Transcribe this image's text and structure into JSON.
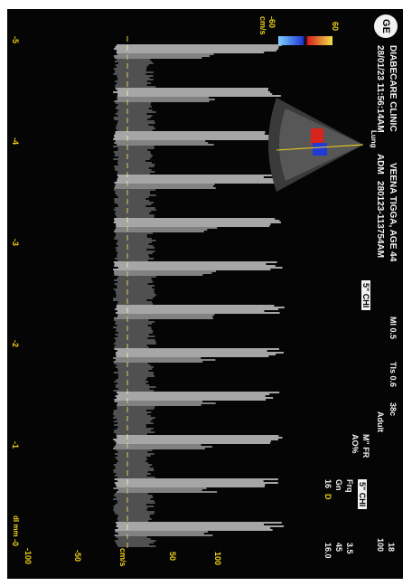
{
  "header": {
    "logo": "GE",
    "clinic": "DIABECARE CLINIC",
    "datetime": "28/01/23 11:56:14AM",
    "patient": "VEENA TIGGA, AGE 44",
    "adm_label": "ADM",
    "adm_id": "280123-113754AM",
    "mi": "MI 0.5",
    "tis": "TIs 0.6",
    "temp": "38c",
    "mode": "Adult"
  },
  "params": {
    "group1": {
      "labels": [
        "M\" FR",
        "AO%"
      ],
      "values": [
        "18",
        "100"
      ]
    },
    "group2": {
      "title": "5\" CHI",
      "labels": [
        "Frq",
        "Gn",
        "D"
      ],
      "values": [
        "3.5",
        "45",
        "16.0"
      ],
      "prefix": "16"
    },
    "group3": {
      "title": "CF",
      "labels": [
        "Frq",
        "Gn",
        "PRF",
        "WF"
      ],
      "values": [
        "1.7",
        "15.0",
        "2.6",
        "322"
      ],
      "prefix": "15"
    },
    "group4": {
      "title": "PW",
      "labels": [
        "Frq",
        "Gn",
        "PRF",
        "WF",
        "SV",
        "SVD"
      ],
      "values": [
        "2.0",
        "33",
        "6.2",
        "45",
        "3",
        "9.2"
      ]
    }
  },
  "scale_labels": {
    "top": "100",
    "s50": "50",
    "unit": "cm/s",
    "neg50": "-50",
    "neg100": "-100"
  },
  "color_bar": {
    "top": "60",
    "bottom": "-60",
    "unit": "cm/s"
  },
  "time_ticks": [
    "-5",
    "-4",
    "-3",
    "-2",
    "-1",
    "-0"
  ],
  "time_unit": "dI mm",
  "probe_label": "Lung",
  "colors": {
    "doppler_white": "#f4f4f4",
    "scale_yellow": "#f0d21c",
    "background": "#050505"
  }
}
